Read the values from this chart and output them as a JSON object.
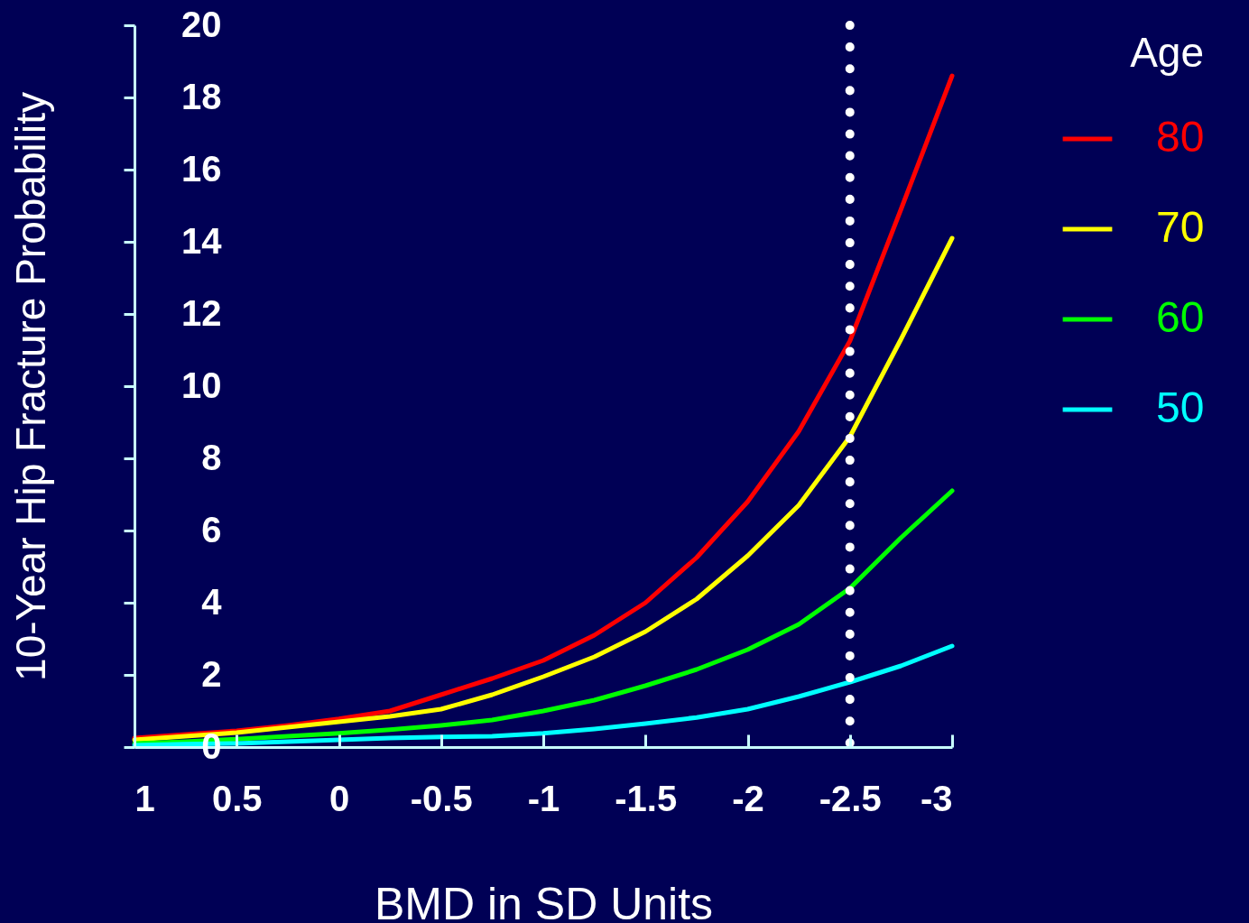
{
  "chart_data": {
    "type": "line",
    "xlabel": "BMD in SD Units",
    "ylabel": "10-Year Hip Fracture Probability",
    "legend_title": "Age",
    "legend": "top right",
    "line_style": "solid",
    "x": [
      1,
      0.75,
      0.5,
      0.25,
      0,
      -0.25,
      -0.5,
      -0.75,
      -1,
      -1.25,
      -1.5,
      -1.75,
      -2,
      -2.25,
      -2.5,
      -2.75,
      -3
    ],
    "xlim": [
      1,
      -3
    ],
    "xticks": [
      1,
      0.5,
      0,
      -0.5,
      -1,
      -1.5,
      -2,
      -2.5,
      -3
    ],
    "ylim": [
      0,
      20
    ],
    "yticks": [
      0,
      2,
      4,
      6,
      8,
      10,
      12,
      14,
      16,
      18,
      20
    ],
    "series": [
      {
        "name": "80",
        "color": "#ff0000",
        "values": [
          0.25,
          0.35,
          0.45,
          0.6,
          0.78,
          1.0,
          1.45,
          1.9,
          2.4,
          3.1,
          4.0,
          5.25,
          6.8,
          8.75,
          11.25,
          14.9,
          18.6
        ]
      },
      {
        "name": "70",
        "color": "#ffff00",
        "values": [
          0.2,
          0.3,
          0.4,
          0.55,
          0.7,
          0.85,
          1.05,
          1.45,
          1.95,
          2.5,
          3.2,
          4.1,
          5.3,
          6.7,
          8.6,
          11.3,
          14.1
        ]
      },
      {
        "name": "60",
        "color": "#00ff00",
        "values": [
          0.1,
          0.15,
          0.22,
          0.3,
          0.38,
          0.48,
          0.6,
          0.75,
          1.0,
          1.3,
          1.7,
          2.15,
          2.7,
          3.4,
          4.4,
          5.8,
          7.1
        ]
      },
      {
        "name": "50",
        "color": "#00ffff",
        "values": [
          0.05,
          0.08,
          0.1,
          0.15,
          0.2,
          0.25,
          0.28,
          0.3,
          0.38,
          0.5,
          0.65,
          0.82,
          1.05,
          1.4,
          1.8,
          2.25,
          2.8
        ]
      }
    ],
    "ref_lines": [
      {
        "axis": "x",
        "value": -2.5,
        "color": "#ffffff",
        "line_style": "dotted"
      }
    ]
  }
}
